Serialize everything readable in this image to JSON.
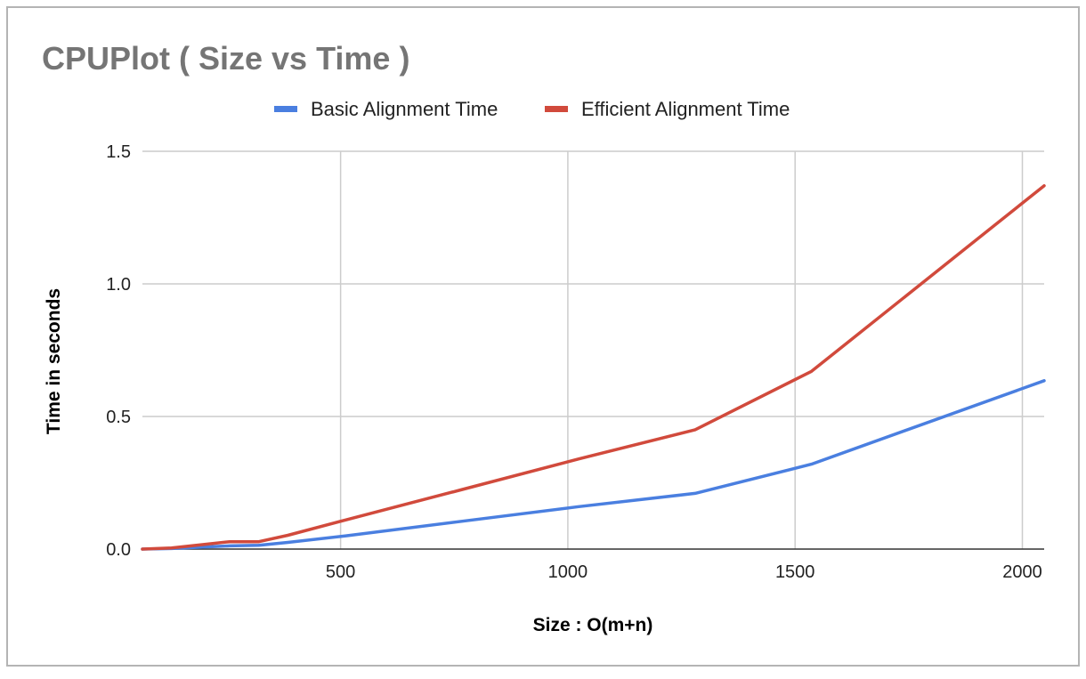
{
  "chart_data": {
    "type": "line",
    "title": "CPUPlot ( Size vs Time )",
    "xlabel": "Size : O(m+n)",
    "ylabel": "Time in seconds",
    "xlim": [
      64,
      2048
    ],
    "ylim": [
      0,
      1.5
    ],
    "xticks": [
      500,
      1000,
      1500,
      2000
    ],
    "xtick_labels": [
      "500",
      "1000",
      "1500",
      "2000"
    ],
    "yticks": [
      0,
      0.5,
      1,
      1.5
    ],
    "ytick_labels": [
      "0.0",
      "0.5",
      "1.0",
      "1.5"
    ],
    "grid": true,
    "legend_position": "top",
    "x": [
      64,
      128,
      256,
      320,
      384,
      512,
      768,
      1024,
      1280,
      1536,
      2048
    ],
    "series": [
      {
        "name": "Basic Alignment Time",
        "color": "#4a7fe0",
        "values": [
          0.0,
          0.002,
          0.012,
          0.014,
          0.025,
          0.05,
          0.105,
          0.16,
          0.21,
          0.32,
          0.635
        ]
      },
      {
        "name": "Efficient Alignment Time",
        "color": "#d14a3c",
        "values": [
          0.0,
          0.004,
          0.028,
          0.028,
          0.052,
          0.11,
          0.225,
          0.34,
          0.45,
          0.67,
          1.37
        ]
      }
    ]
  }
}
